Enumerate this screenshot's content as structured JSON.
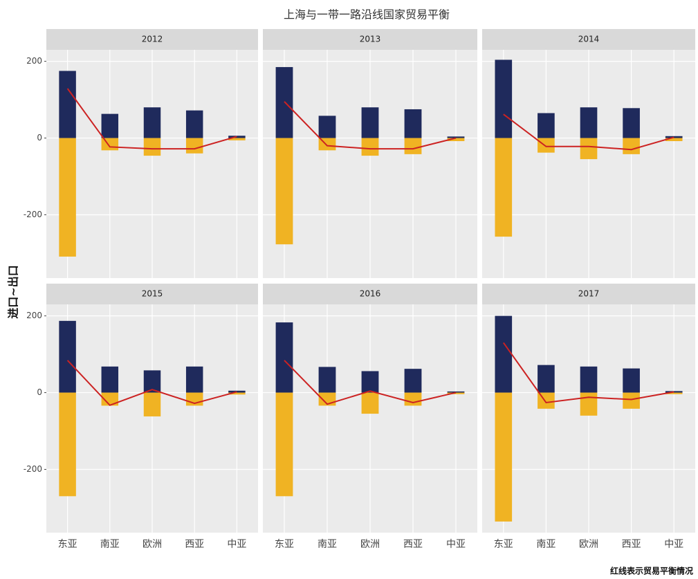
{
  "title": "上海与一带一路沿线国家贸易平衡",
  "ylabel": "进口~出口",
  "caption": "红线表示贸易平衡情况",
  "chart_data": [
    {
      "type": "bar",
      "title": "2012",
      "categories": [
        "东亚",
        "南亚",
        "欧洲",
        "西亚",
        "中亚"
      ],
      "series": [
        {
          "type": "bar",
          "color": "#1f2a5c",
          "values": [
            175,
            63,
            80,
            72,
            6
          ]
        },
        {
          "type": "bar",
          "color": "#f0b323",
          "values": [
            -309,
            -32,
            -46,
            -40,
            -6
          ]
        },
        {
          "type": "line",
          "color": "#cc2222",
          "values": [
            129,
            -23,
            -28,
            -28,
            4
          ]
        }
      ],
      "ylim": [
        -365,
        230
      ],
      "yticks": [
        -200,
        0,
        200
      ],
      "grid": true
    },
    {
      "type": "bar",
      "title": "2013",
      "categories": [
        "东亚",
        "南亚",
        "欧洲",
        "西亚",
        "中亚"
      ],
      "series": [
        {
          "type": "bar",
          "color": "#1f2a5c",
          "values": [
            185,
            58,
            80,
            75,
            4
          ]
        },
        {
          "type": "bar",
          "color": "#f0b323",
          "values": [
            -277,
            -32,
            -46,
            -42,
            -8
          ]
        },
        {
          "type": "line",
          "color": "#cc2222",
          "values": [
            95,
            -20,
            -28,
            -28,
            0
          ]
        }
      ],
      "ylim": [
        -365,
        230
      ],
      "yticks": [
        -200,
        0,
        200
      ],
      "grid": true
    },
    {
      "type": "bar",
      "title": "2014",
      "categories": [
        "东亚",
        "南亚",
        "欧洲",
        "西亚",
        "中亚"
      ],
      "series": [
        {
          "type": "bar",
          "color": "#1f2a5c",
          "values": [
            204,
            65,
            80,
            78,
            5
          ]
        },
        {
          "type": "bar",
          "color": "#f0b323",
          "values": [
            -257,
            -38,
            -55,
            -42,
            -8
          ]
        },
        {
          "type": "line",
          "color": "#cc2222",
          "values": [
            62,
            -22,
            -22,
            -30,
            2
          ]
        }
      ],
      "ylim": [
        -365,
        230
      ],
      "yticks": [
        -200,
        0,
        200
      ],
      "grid": true
    },
    {
      "type": "bar",
      "title": "2015",
      "categories": [
        "东亚",
        "南亚",
        "欧洲",
        "西亚",
        "中亚"
      ],
      "series": [
        {
          "type": "bar",
          "color": "#1f2a5c",
          "values": [
            187,
            68,
            58,
            68,
            5
          ]
        },
        {
          "type": "bar",
          "color": "#f0b323",
          "values": [
            -270,
            -34,
            -62,
            -34,
            -5
          ]
        },
        {
          "type": "line",
          "color": "#cc2222",
          "values": [
            84,
            -33,
            8,
            -28,
            2
          ]
        }
      ],
      "ylim": [
        -365,
        230
      ],
      "yticks": [
        -200,
        0,
        200
      ],
      "grid": true
    },
    {
      "type": "bar",
      "title": "2016",
      "categories": [
        "东亚",
        "南亚",
        "欧洲",
        "西亚",
        "中亚"
      ],
      "series": [
        {
          "type": "bar",
          "color": "#1f2a5c",
          "values": [
            183,
            67,
            56,
            62,
            3
          ]
        },
        {
          "type": "bar",
          "color": "#f0b323",
          "values": [
            -270,
            -34,
            -55,
            -34,
            -4
          ]
        },
        {
          "type": "line",
          "color": "#cc2222",
          "values": [
            84,
            -30,
            4,
            -26,
            0
          ]
        }
      ],
      "ylim": [
        -365,
        230
      ],
      "yticks": [
        -200,
        0,
        200
      ],
      "grid": true
    },
    {
      "type": "bar",
      "title": "2017",
      "categories": [
        "东亚",
        "南亚",
        "欧洲",
        "西亚",
        "中亚"
      ],
      "series": [
        {
          "type": "bar",
          "color": "#1f2a5c",
          "values": [
            200,
            72,
            68,
            63,
            4
          ]
        },
        {
          "type": "bar",
          "color": "#f0b323",
          "values": [
            -336,
            -42,
            -60,
            -42,
            -4
          ]
        },
        {
          "type": "line",
          "color": "#cc2222",
          "values": [
            130,
            -26,
            -12,
            -18,
            2
          ]
        }
      ],
      "ylim": [
        -365,
        230
      ],
      "yticks": [
        -200,
        0,
        200
      ],
      "grid": true
    }
  ]
}
